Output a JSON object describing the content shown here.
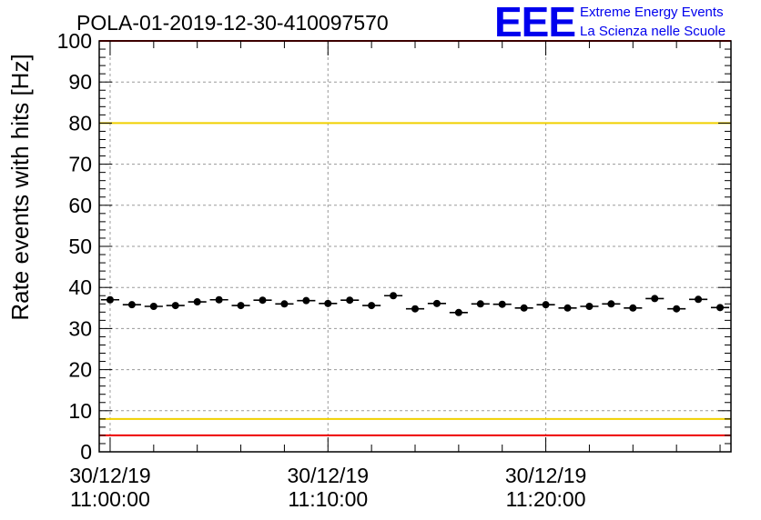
{
  "chart_data": {
    "type": "scatter",
    "title": "POLA-01-2019-12-30-410097570",
    "ylabel": "Rate events with hits [Hz]",
    "xlabel": "",
    "ylim": [
      0,
      100
    ],
    "yticks": [
      "0",
      "10",
      "20",
      "30",
      "40",
      "50",
      "60",
      "70",
      "80",
      "90",
      "100"
    ],
    "xlim_minutes": [
      -0.5,
      28.5
    ],
    "xticks": [
      {
        "minute": 0,
        "date": "30/12/19",
        "time": "11:00:00"
      },
      {
        "minute": 10,
        "date": "30/12/19",
        "time": "11:10:00"
      },
      {
        "minute": 20,
        "date": "30/12/19",
        "time": "11:20:00"
      }
    ],
    "grid": true,
    "series": [
      {
        "x_minutes": [
          0,
          1,
          2,
          3,
          4,
          5,
          6,
          7,
          8,
          9,
          10,
          11,
          12,
          13,
          14,
          15,
          16,
          17,
          18,
          19,
          20,
          21,
          22,
          23,
          24,
          25,
          26,
          27,
          28
        ],
        "values": [
          37.0,
          35.8,
          35.4,
          35.6,
          36.5,
          37.0,
          35.6,
          36.9,
          36.0,
          36.8,
          36.1,
          36.9,
          35.6,
          38.0,
          34.8,
          36.1,
          33.9,
          36.0,
          35.9,
          35.0,
          35.8,
          35.0,
          35.4,
          36.0,
          35.0,
          37.3,
          34.8,
          37.1,
          35.1
        ]
      }
    ],
    "reference_lines": [
      {
        "y": 80,
        "color": "#f0d000"
      },
      {
        "y": 8,
        "color": "#f0d000"
      },
      {
        "y": 100,
        "color": "#ee0000"
      },
      {
        "y": 4,
        "color": "#ee0000"
      }
    ]
  },
  "logo": {
    "mark": "EEE",
    "line1": "Extreme Energy Events",
    "line2": "La Scienza nelle Scuole",
    "color": "#0000ee"
  }
}
